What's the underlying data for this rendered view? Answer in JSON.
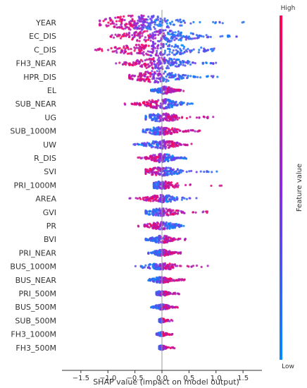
{
  "chart_data": {
    "type": "scatter",
    "subtype": "shap-beeswarm",
    "title": "",
    "xlabel": "SHAP value (impact on model output)",
    "ylabel": "",
    "xlim": [
      -1.85,
      1.85
    ],
    "x_ticks": [
      {
        "value": -1.5,
        "label": "−1.5"
      },
      {
        "value": -1.0,
        "label": "−1.0"
      },
      {
        "value": -0.5,
        "label": "−0.5"
      },
      {
        "value": 0.0,
        "label": "0.0"
      },
      {
        "value": 0.5,
        "label": "0.5"
      },
      {
        "value": 1.0,
        "label": "1.0"
      },
      {
        "value": 1.5,
        "label": "1.5"
      }
    ],
    "zero_line": 0,
    "grid": false,
    "colorbar": {
      "title": "Feature value",
      "high_label": "High",
      "low_label": "Low",
      "high_color": "#ff0052",
      "low_color": "#008bfb",
      "placement": "right"
    },
    "features": [
      {
        "name": "YEAR",
        "min": -1.15,
        "max": 1.7,
        "center": -0.4,
        "spread": 0.35,
        "density": 14,
        "high_side": "left"
      },
      {
        "name": "EC_DIS",
        "min": -0.95,
        "max": 1.6,
        "center": -0.1,
        "spread": 0.45,
        "density": 12,
        "high_side": "left"
      },
      {
        "name": "C_DIS",
        "min": -1.65,
        "max": 1.25,
        "center": -0.1,
        "spread": 0.45,
        "density": 12,
        "high_side": "left"
      },
      {
        "name": "FH3_NEAR",
        "min": -0.85,
        "max": 1.0,
        "center": -0.05,
        "spread": 0.35,
        "density": 11,
        "high_side": "left"
      },
      {
        "name": "HPR_DIS",
        "min": -0.6,
        "max": 1.1,
        "center": -0.1,
        "spread": 0.35,
        "density": 11,
        "high_side": "left"
      },
      {
        "name": "EL",
        "min": -0.2,
        "max": 0.4,
        "center": 0.05,
        "spread": 0.15,
        "density": 7,
        "high_side": "right"
      },
      {
        "name": "SUB_NEAR",
        "min": -0.7,
        "max": 0.6,
        "center": 0.0,
        "spread": 0.25,
        "density": 9,
        "high_side": "left"
      },
      {
        "name": "UG",
        "min": -0.3,
        "max": 0.95,
        "center": 0.0,
        "spread": 0.2,
        "density": 8,
        "high_side": "right"
      },
      {
        "name": "SUB_1000M",
        "min": -0.35,
        "max": 0.75,
        "center": 0.0,
        "spread": 0.2,
        "density": 8,
        "high_side": "right"
      },
      {
        "name": "UW",
        "min": -0.55,
        "max": 0.55,
        "center": 0.0,
        "spread": 0.22,
        "density": 8,
        "high_side": "right"
      },
      {
        "name": "R_DIS",
        "min": -0.45,
        "max": 0.45,
        "center": 0.0,
        "spread": 0.18,
        "density": 8,
        "high_side": "left"
      },
      {
        "name": "SVI",
        "min": -0.3,
        "max": 1.05,
        "center": 0.0,
        "spread": 0.2,
        "density": 8,
        "high_side": "left"
      },
      {
        "name": "PRI_1000M",
        "min": -0.15,
        "max": 1.15,
        "center": 0.0,
        "spread": 0.15,
        "density": 7,
        "high_side": "right"
      },
      {
        "name": "AREA",
        "min": -0.6,
        "max": 0.65,
        "center": 0.0,
        "spread": 0.18,
        "density": 7,
        "high_side": "left"
      },
      {
        "name": "GVI",
        "min": -0.3,
        "max": 0.95,
        "center": 0.0,
        "spread": 0.18,
        "density": 7,
        "high_side": "right"
      },
      {
        "name": "PR",
        "min": -0.65,
        "max": 0.45,
        "center": 0.0,
        "spread": 0.18,
        "density": 7,
        "high_side": "left"
      },
      {
        "name": "BVI",
        "min": -0.3,
        "max": 0.45,
        "center": 0.0,
        "spread": 0.15,
        "density": 7,
        "high_side": "right"
      },
      {
        "name": "PRI_NEAR",
        "min": -0.25,
        "max": 0.4,
        "center": 0.0,
        "spread": 0.13,
        "density": 6,
        "high_side": "right"
      },
      {
        "name": "BUS_1000M",
        "min": -0.6,
        "max": 0.85,
        "center": 0.0,
        "spread": 0.15,
        "density": 6,
        "high_side": "right"
      },
      {
        "name": "BUS_NEAR",
        "min": -0.25,
        "max": 0.45,
        "center": 0.0,
        "spread": 0.13,
        "density": 6,
        "high_side": "right"
      },
      {
        "name": "PRI_500M",
        "min": -0.1,
        "max": 0.35,
        "center": 0.0,
        "spread": 0.1,
        "density": 5,
        "high_side": "right"
      },
      {
        "name": "BUS_500M",
        "min": -0.2,
        "max": 0.35,
        "center": 0.0,
        "spread": 0.1,
        "density": 5,
        "high_side": "right"
      },
      {
        "name": "SUB_500M",
        "min": -0.05,
        "max": 0.2,
        "center": 0.0,
        "spread": 0.05,
        "density": 4,
        "high_side": "right"
      },
      {
        "name": "FH3_1000M",
        "min": -0.1,
        "max": 0.2,
        "center": 0.0,
        "spread": 0.05,
        "density": 4,
        "high_side": "right"
      },
      {
        "name": "FH3_500M",
        "min": -0.05,
        "max": 0.25,
        "center": 0.0,
        "spread": 0.05,
        "density": 4,
        "high_side": "right"
      }
    ]
  }
}
